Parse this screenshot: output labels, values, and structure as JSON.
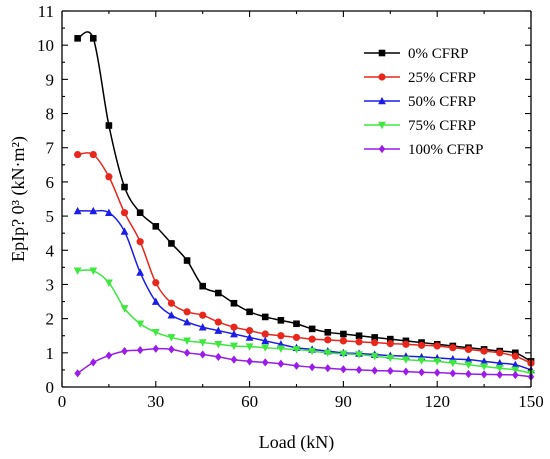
{
  "chart_data": {
    "type": "line",
    "title": "",
    "xlabel": "Load (kN)",
    "ylabel": "EpIp? 0³ (kN·m²)",
    "xlim": [
      0,
      150
    ],
    "ylim": [
      0,
      11
    ],
    "xticks": [
      0,
      30,
      60,
      90,
      120,
      150
    ],
    "yticks": [
      0,
      1,
      2,
      3,
      4,
      5,
      6,
      7,
      8,
      9,
      10,
      11
    ],
    "grid": false,
    "legend_position": "top-right",
    "series": [
      {
        "name": "0% CFRP",
        "color": "#000000",
        "marker": "square",
        "x": [
          5,
          10,
          15,
          20,
          25,
          30,
          35,
          40,
          45,
          50,
          55,
          60,
          65,
          70,
          75,
          80,
          85,
          90,
          95,
          100,
          105,
          110,
          115,
          120,
          125,
          130,
          135,
          140,
          145,
          150
        ],
        "y": [
          10.2,
          10.2,
          7.65,
          5.85,
          5.1,
          4.7,
          4.2,
          3.7,
          2.95,
          2.75,
          2.45,
          2.2,
          2.05,
          1.95,
          1.85,
          1.7,
          1.6,
          1.55,
          1.5,
          1.45,
          1.4,
          1.35,
          1.3,
          1.25,
          1.2,
          1.15,
          1.1,
          1.05,
          1.0,
          0.75
        ]
      },
      {
        "name": "25% CFRP",
        "color": "#e8261c",
        "marker": "circle",
        "x": [
          5,
          10,
          15,
          20,
          25,
          30,
          35,
          40,
          45,
          50,
          55,
          60,
          65,
          70,
          75,
          80,
          85,
          90,
          95,
          100,
          105,
          110,
          115,
          120,
          125,
          130,
          135,
          140,
          145,
          150
        ],
        "y": [
          6.8,
          6.8,
          6.15,
          5.1,
          4.25,
          3.05,
          2.45,
          2.2,
          2.1,
          1.9,
          1.75,
          1.65,
          1.55,
          1.5,
          1.45,
          1.4,
          1.38,
          1.35,
          1.32,
          1.3,
          1.27,
          1.25,
          1.22,
          1.2,
          1.15,
          1.1,
          1.05,
          1.0,
          0.9,
          0.7
        ]
      },
      {
        "name": "50% CFRP",
        "color": "#1c1ce8",
        "marker": "triangle-up",
        "x": [
          5,
          10,
          15,
          20,
          25,
          30,
          35,
          40,
          45,
          50,
          55,
          60,
          65,
          70,
          75,
          80,
          85,
          90,
          95,
          100,
          105,
          110,
          115,
          120,
          125,
          130,
          135,
          140,
          145,
          150
        ],
        "y": [
          5.15,
          5.15,
          5.1,
          4.55,
          3.35,
          2.5,
          2.1,
          1.9,
          1.75,
          1.65,
          1.55,
          1.45,
          1.35,
          1.25,
          1.15,
          1.1,
          1.05,
          1.0,
          0.98,
          0.95,
          0.92,
          0.9,
          0.88,
          0.85,
          0.82,
          0.8,
          0.75,
          0.7,
          0.65,
          0.5
        ]
      },
      {
        "name": "75% CFRP",
        "color": "#3ee83e",
        "marker": "triangle-down",
        "x": [
          5,
          10,
          15,
          20,
          25,
          30,
          35,
          40,
          45,
          50,
          55,
          60,
          65,
          70,
          75,
          80,
          85,
          90,
          95,
          100,
          105,
          110,
          115,
          120,
          125,
          130,
          135,
          140,
          145,
          150
        ],
        "y": [
          3.4,
          3.4,
          3.05,
          2.3,
          1.85,
          1.6,
          1.45,
          1.35,
          1.3,
          1.25,
          1.2,
          1.18,
          1.15,
          1.12,
          1.1,
          1.05,
          1.0,
          0.97,
          0.95,
          0.9,
          0.85,
          0.8,
          0.77,
          0.75,
          0.7,
          0.65,
          0.6,
          0.55,
          0.5,
          0.4
        ]
      },
      {
        "name": "100% CFRP",
        "color": "#9b1ce8",
        "marker": "diamond",
        "x": [
          5,
          10,
          15,
          20,
          25,
          30,
          35,
          40,
          45,
          50,
          55,
          60,
          65,
          70,
          75,
          80,
          85,
          90,
          95,
          100,
          105,
          110,
          115,
          120,
          125,
          130,
          135,
          140,
          145,
          150
        ],
        "y": [
          0.4,
          0.72,
          0.92,
          1.05,
          1.08,
          1.12,
          1.1,
          1.0,
          0.95,
          0.88,
          0.8,
          0.75,
          0.72,
          0.68,
          0.62,
          0.58,
          0.55,
          0.52,
          0.5,
          0.48,
          0.47,
          0.45,
          0.43,
          0.42,
          0.4,
          0.38,
          0.37,
          0.36,
          0.35,
          0.3
        ]
      }
    ]
  }
}
